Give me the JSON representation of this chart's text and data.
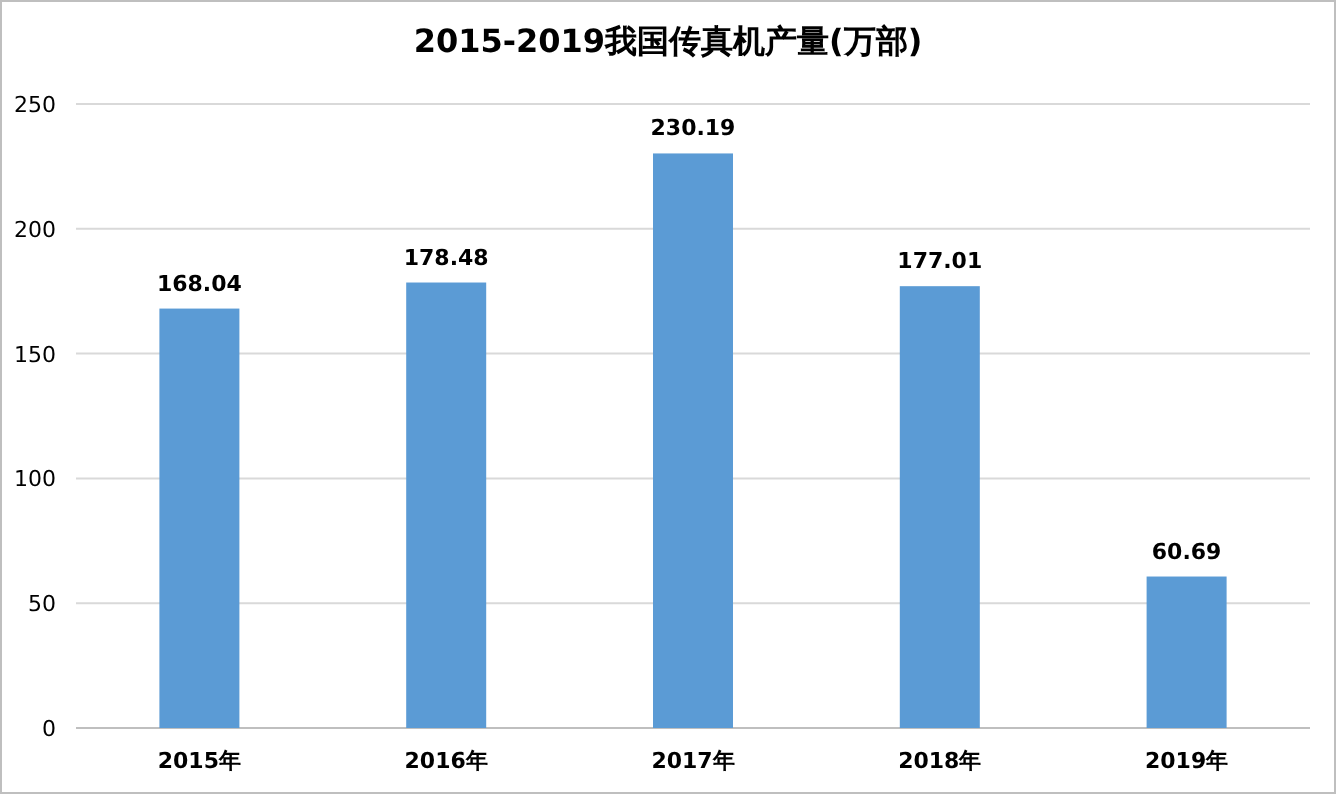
{
  "chart_data": {
    "type": "bar",
    "title": "2015-2019我国传真机产量(万部)",
    "categories": [
      "2015年",
      "2016年",
      "2017年",
      "2018年",
      "2019年"
    ],
    "values": [
      168.04,
      178.48,
      230.19,
      177.01,
      60.69
    ],
    "color": "#5b9bd5",
    "ylim": [
      0,
      250
    ],
    "yticks": [
      0,
      50,
      100,
      150,
      200,
      250
    ],
    "grid": "y",
    "data_labels": true
  }
}
